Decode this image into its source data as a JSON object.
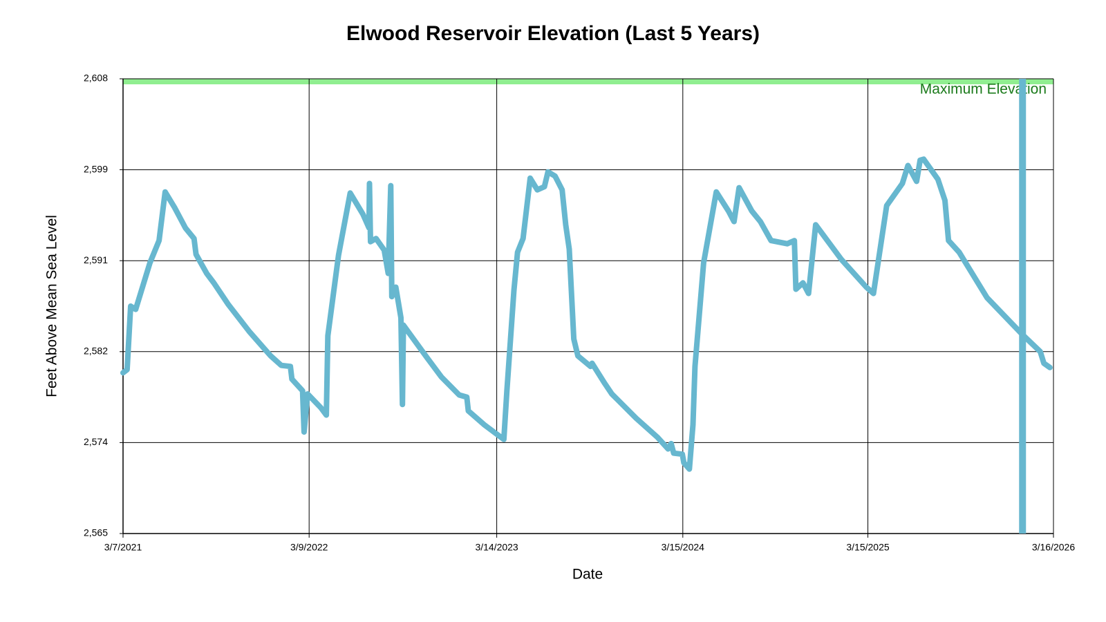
{
  "chart_data": {
    "type": "line",
    "title": "Elwood Reservoir Elevation (Last 5 Years)",
    "x_label": "Date",
    "y_label": "Feet Above Mean Sea Level",
    "x": [
      "2021-03-07",
      "2021-03-15",
      "2021-03-22",
      "2021-04-01",
      "2021-04-29",
      "2021-05-17",
      "2021-05-29",
      "2021-06-17",
      "2021-07-08",
      "2021-07-25",
      "2021-07-29",
      "2021-08-19",
      "2021-09-02",
      "2021-09-30",
      "2021-11-11",
      "2021-12-23",
      "2022-01-13",
      "2022-01-31",
      "2022-02-03",
      "2022-02-24",
      "2022-02-27",
      "2022-03-06",
      "2022-04-01",
      "2022-04-12",
      "2022-04-15",
      "2022-05-06",
      "2022-05-29",
      "2022-06-23",
      "2022-07-05",
      "2022-07-06",
      "2022-07-08",
      "2022-07-19",
      "2022-08-04",
      "2022-08-12",
      "2022-08-17",
      "2022-08-19",
      "2022-08-27",
      "2022-09-06",
      "2022-09-09",
      "2022-09-11",
      "2022-10-28",
      "2022-11-25",
      "2022-12-30",
      "2023-01-14",
      "2023-01-17",
      "2023-02-17",
      "2023-03-28",
      "2023-04-03",
      "2023-04-17",
      "2023-04-24",
      "2023-05-05",
      "2023-05-19",
      "2023-06-02",
      "2023-06-16",
      "2023-06-23",
      "2023-07-07",
      "2023-07-21",
      "2023-07-28",
      "2023-08-04",
      "2023-08-13",
      "2023-08-21",
      "2023-09-15",
      "2023-09-18",
      "2023-10-13",
      "2023-10-27",
      "2023-12-14",
      "2024-01-25",
      "2024-02-15",
      "2024-02-21",
      "2024-02-26",
      "2024-03-14",
      "2024-03-17",
      "2024-03-28",
      "2024-04-04",
      "2024-04-08",
      "2024-04-25",
      "2024-05-20",
      "2024-06-13",
      "2024-06-24",
      "2024-07-04",
      "2024-07-29",
      "2024-08-15",
      "2024-09-05",
      "2024-10-07",
      "2024-10-21",
      "2024-10-24",
      "2024-11-07",
      "2024-11-18",
      "2024-12-02",
      "2025-01-22",
      "2025-03-12",
      "2025-03-26",
      "2025-04-21",
      "2025-05-22",
      "2025-06-02",
      "2025-06-19",
      "2025-06-26",
      "2025-07-03",
      "2025-07-31",
      "2025-08-14",
      "2025-08-21",
      "2025-09-11",
      "2025-11-05",
      "2026-01-14",
      "2026-02-18",
      "2026-02-25",
      "2026-03-09"
    ],
    "values": [
      2580.2,
      2580.5,
      2586.5,
      2586.2,
      2590.6,
      2592.7,
      2597.3,
      2595.8,
      2593.9,
      2592.9,
      2591.4,
      2589.6,
      2588.7,
      2586.7,
      2584.1,
      2581.8,
      2580.9,
      2580.8,
      2579.6,
      2578.5,
      2574.6,
      2578.2,
      2576.9,
      2576.2,
      2583.7,
      2591.3,
      2597.2,
      2595.2,
      2593.9,
      2598.1,
      2592.6,
      2592.9,
      2591.8,
      2589.6,
      2597.9,
      2587.4,
      2588.3,
      2585.4,
      2577.2,
      2584.7,
      2581.6,
      2579.8,
      2578.1,
      2577.9,
      2576.6,
      2575.3,
      2573.9,
      2578.5,
      2588.0,
      2591.6,
      2592.9,
      2598.6,
      2597.5,
      2597.8,
      2599.2,
      2598.8,
      2597.5,
      2594.2,
      2591.9,
      2583.4,
      2581.8,
      2580.8,
      2581.1,
      2579.2,
      2578.2,
      2575.9,
      2574.1,
      2573.0,
      2573.5,
      2572.6,
      2572.5,
      2571.7,
      2571.1,
      2575.3,
      2580.8,
      2590.6,
      2597.3,
      2595.5,
      2594.5,
      2597.7,
      2595.5,
      2594.5,
      2592.7,
      2592.4,
      2592.7,
      2588.1,
      2588.7,
      2587.7,
      2594.2,
      2590.9,
      2588.3,
      2587.7,
      2596.0,
      2598.1,
      2599.8,
      2598.3,
      2600.3,
      2600.4,
      2598.5,
      2596.5,
      2592.7,
      2591.6,
      2587.3,
      2583.8,
      2582.2,
      2581.1,
      2580.7
    ],
    "color": "#67b7cf",
    "marker_date": "2026-01-14",
    "max_elevation": {
      "value": 2608,
      "label": "Maximum Elevation",
      "color": "#90ee90",
      "text_color": "#1a7a1a"
    },
    "xlim": [
      "2021-03-07",
      "2026-03-16"
    ],
    "xticks": [
      {
        "value": "2021-03-07",
        "label": "3/7/2021"
      },
      {
        "value": "2022-03-09",
        "label": "3/9/2022"
      },
      {
        "value": "2023-03-14",
        "label": "3/14/2023"
      },
      {
        "value": "2024-03-15",
        "label": "3/15/2024"
      },
      {
        "value": "2025-03-15",
        "label": "3/15/2025"
      },
      {
        "value": "2026-03-16",
        "label": "3/16/2026"
      }
    ],
    "ylim": [
      2565,
      2608
    ],
    "yticks": [
      {
        "value": 2565,
        "label": "2,565"
      },
      {
        "value": 2573.6,
        "label": "2,574"
      },
      {
        "value": 2582.2,
        "label": "2,582"
      },
      {
        "value": 2590.8,
        "label": "2,591"
      },
      {
        "value": 2599.4,
        "label": "2,599"
      },
      {
        "value": 2608,
        "label": "2,608"
      }
    ],
    "grid": true
  }
}
